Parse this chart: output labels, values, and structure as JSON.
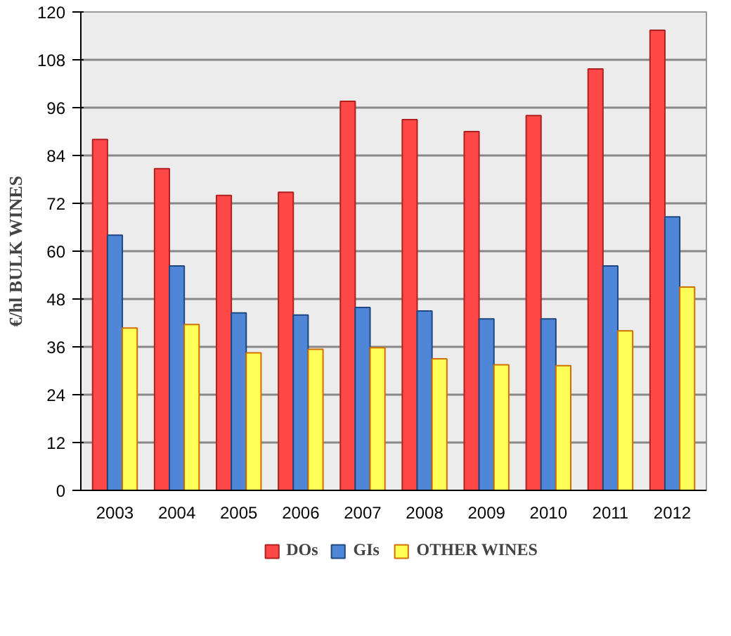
{
  "chart_data": {
    "type": "bar",
    "ylabel": "€/hl BULK WINES",
    "categories": [
      "2003",
      "2004",
      "2005",
      "2006",
      "2007",
      "2008",
      "2009",
      "2010",
      "2011",
      "2012"
    ],
    "series": [
      {
        "name": "DOs",
        "color": "#ff4848",
        "values": [
          88,
          80.7,
          74,
          74.8,
          97.6,
          93,
          90,
          94,
          105.7,
          115.4
        ]
      },
      {
        "name": "GIs",
        "color": "#4f86d8",
        "values": [
          64,
          56.3,
          44.5,
          44,
          45.9,
          45,
          43,
          43,
          56.3,
          68.6
        ]
      },
      {
        "name": "OTHER WINES",
        "color": "#ffff55",
        "values": [
          40.7,
          41.6,
          34.5,
          35.4,
          35.8,
          33,
          31.5,
          31.3,
          40,
          51
        ]
      }
    ],
    "ylim": [
      0,
      120
    ],
    "yticks": [
      0,
      12,
      24,
      36,
      48,
      60,
      72,
      84,
      96,
      108,
      120
    ],
    "grid": "y",
    "legend": "bottom"
  }
}
